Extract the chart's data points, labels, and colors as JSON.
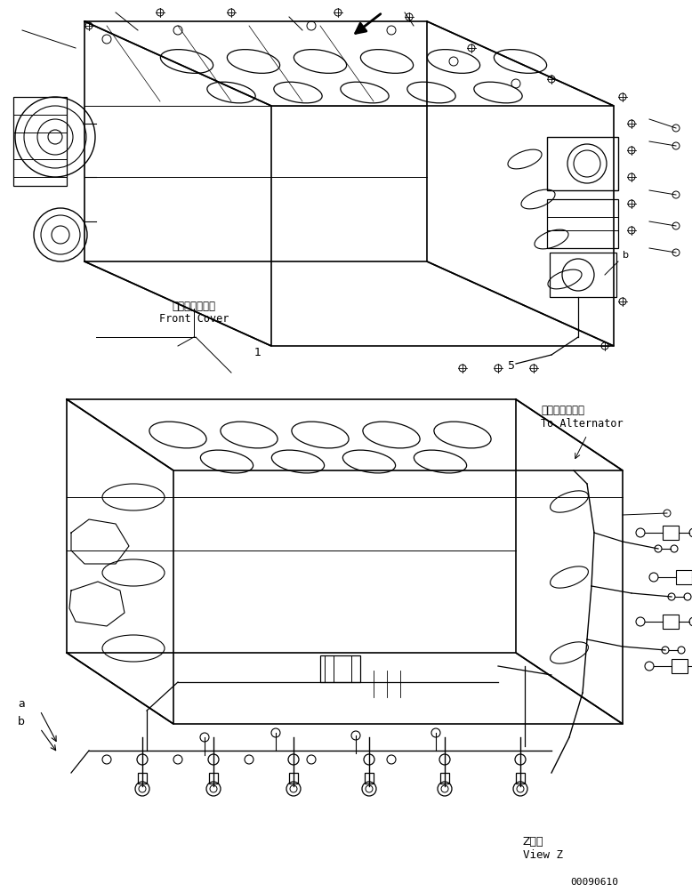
{
  "bg_color": "#ffffff",
  "line_color": "#000000",
  "fig_width": 7.78,
  "fig_height": 10.04,
  "dpi": 100,
  "part_number": "00090610",
  "labels": {
    "front_cover_jp": "フロントカバー",
    "front_cover_en": "Front Cover",
    "to_alternator_jp": "オルタネータヘ",
    "to_alternator_en": "To Alternator",
    "view_z_jp": "Z　視",
    "view_z_en": "View Z",
    "label_1": "1",
    "label_5": "5",
    "label_a": "a",
    "label_b": "b"
  }
}
